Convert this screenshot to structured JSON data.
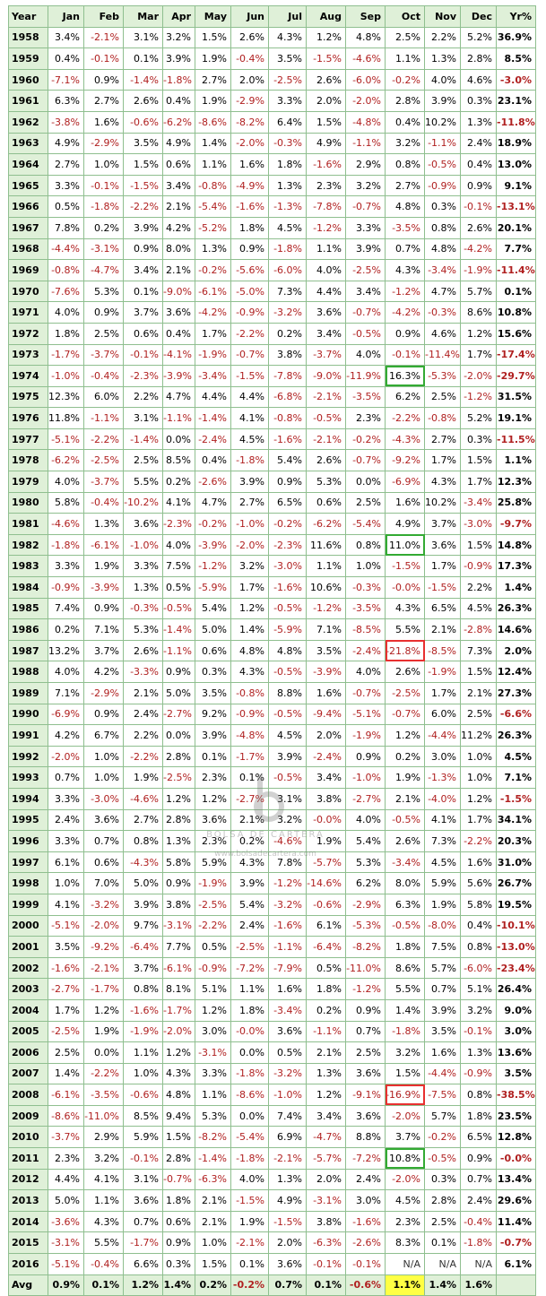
{
  "headers": [
    "Year",
    "Jan",
    "Feb",
    "Mar",
    "Apr",
    "May",
    "Jun",
    "Jul",
    "Aug",
    "Sep",
    "Oct",
    "Nov",
    "Dec",
    "Yr%"
  ],
  "rows": [
    [
      "1958",
      "3.4%",
      "-2.1%",
      "3.1%",
      "3.2%",
      "1.5%",
      "2.6%",
      "4.3%",
      "1.2%",
      "4.8%",
      "2.5%",
      "2.2%",
      "5.2%",
      "36.9%"
    ],
    [
      "1959",
      "0.4%",
      "-0.1%",
      "0.1%",
      "3.9%",
      "1.9%",
      "-0.4%",
      "3.5%",
      "-1.5%",
      "-4.6%",
      "1.1%",
      "1.3%",
      "2.8%",
      "8.5%"
    ],
    [
      "1960",
      "-7.1%",
      "0.9%",
      "-1.4%",
      "-1.8%",
      "2.7%",
      "2.0%",
      "-2.5%",
      "2.6%",
      "-6.0%",
      "-0.2%",
      "4.0%",
      "4.6%",
      "-3.0%"
    ],
    [
      "1961",
      "6.3%",
      "2.7%",
      "2.6%",
      "0.4%",
      "1.9%",
      "-2.9%",
      "3.3%",
      "2.0%",
      "-2.0%",
      "2.8%",
      "3.9%",
      "0.3%",
      "23.1%"
    ],
    [
      "1962",
      "-3.8%",
      "1.6%",
      "-0.6%",
      "-6.2%",
      "-8.6%",
      "-8.2%",
      "6.4%",
      "1.5%",
      "-4.8%",
      "0.4%",
      "10.2%",
      "1.3%",
      "-11.8%"
    ],
    [
      "1963",
      "4.9%",
      "-2.9%",
      "3.5%",
      "4.9%",
      "1.4%",
      "-2.0%",
      "-0.3%",
      "4.9%",
      "-1.1%",
      "3.2%",
      "-1.1%",
      "2.4%",
      "18.9%"
    ],
    [
      "1964",
      "2.7%",
      "1.0%",
      "1.5%",
      "0.6%",
      "1.1%",
      "1.6%",
      "1.8%",
      "-1.6%",
      "2.9%",
      "0.8%",
      "-0.5%",
      "0.4%",
      "13.0%"
    ],
    [
      "1965",
      "3.3%",
      "-0.1%",
      "-1.5%",
      "3.4%",
      "-0.8%",
      "-4.9%",
      "1.3%",
      "2.3%",
      "3.2%",
      "2.7%",
      "-0.9%",
      "0.9%",
      "9.1%"
    ],
    [
      "1966",
      "0.5%",
      "-1.8%",
      "-2.2%",
      "2.1%",
      "-5.4%",
      "-1.6%",
      "-1.3%",
      "-7.8%",
      "-0.7%",
      "4.8%",
      "0.3%",
      "-0.1%",
      "-13.1%"
    ],
    [
      "1967",
      "7.8%",
      "0.2%",
      "3.9%",
      "4.2%",
      "-5.2%",
      "1.8%",
      "4.5%",
      "-1.2%",
      "3.3%",
      "-3.5%",
      "0.8%",
      "2.6%",
      "20.1%"
    ],
    [
      "1968",
      "-4.4%",
      "-3.1%",
      "0.9%",
      "8.0%",
      "1.3%",
      "0.9%",
      "-1.8%",
      "1.1%",
      "3.9%",
      "0.7%",
      "4.8%",
      "-4.2%",
      "7.7%"
    ],
    [
      "1969",
      "-0.8%",
      "-4.7%",
      "3.4%",
      "2.1%",
      "-0.2%",
      "-5.6%",
      "-6.0%",
      "4.0%",
      "-2.5%",
      "4.3%",
      "-3.4%",
      "-1.9%",
      "-11.4%"
    ],
    [
      "1970",
      "-7.6%",
      "5.3%",
      "0.1%",
      "-9.0%",
      "-6.1%",
      "-5.0%",
      "7.3%",
      "4.4%",
      "3.4%",
      "-1.2%",
      "4.7%",
      "5.7%",
      "0.1%"
    ],
    [
      "1971",
      "4.0%",
      "0.9%",
      "3.7%",
      "3.6%",
      "-4.2%",
      "-0.9%",
      "-3.2%",
      "3.6%",
      "-0.7%",
      "-4.2%",
      "-0.3%",
      "8.6%",
      "10.8%"
    ],
    [
      "1972",
      "1.8%",
      "2.5%",
      "0.6%",
      "0.4%",
      "1.7%",
      "-2.2%",
      "0.2%",
      "3.4%",
      "-0.5%",
      "0.9%",
      "4.6%",
      "1.2%",
      "15.6%"
    ],
    [
      "1973",
      "-1.7%",
      "-3.7%",
      "-0.1%",
      "-4.1%",
      "-1.9%",
      "-0.7%",
      "3.8%",
      "-3.7%",
      "4.0%",
      "-0.1%",
      "-11.4%",
      "1.7%",
      "-17.4%"
    ],
    [
      "1974",
      "-1.0%",
      "-0.4%",
      "-2.3%",
      "-3.9%",
      "-3.4%",
      "-1.5%",
      "-7.8%",
      "-9.0%",
      "-11.9%",
      "16.3%",
      "-5.3%",
      "-2.0%",
      "-29.7%"
    ],
    [
      "1975",
      "12.3%",
      "6.0%",
      "2.2%",
      "4.7%",
      "4.4%",
      "4.4%",
      "-6.8%",
      "-2.1%",
      "-3.5%",
      "6.2%",
      "2.5%",
      "-1.2%",
      "31.5%"
    ],
    [
      "1976",
      "11.8%",
      "-1.1%",
      "3.1%",
      "-1.1%",
      "-1.4%",
      "4.1%",
      "-0.8%",
      "-0.5%",
      "2.3%",
      "-2.2%",
      "-0.8%",
      "5.2%",
      "19.1%"
    ],
    [
      "1977",
      "-5.1%",
      "-2.2%",
      "-1.4%",
      "0.0%",
      "-2.4%",
      "4.5%",
      "-1.6%",
      "-2.1%",
      "-0.2%",
      "-4.3%",
      "2.7%",
      "0.3%",
      "-11.5%"
    ],
    [
      "1978",
      "-6.2%",
      "-2.5%",
      "2.5%",
      "8.5%",
      "0.4%",
      "-1.8%",
      "5.4%",
      "2.6%",
      "-0.7%",
      "-9.2%",
      "1.7%",
      "1.5%",
      "1.1%"
    ],
    [
      "1979",
      "4.0%",
      "-3.7%",
      "5.5%",
      "0.2%",
      "-2.6%",
      "3.9%",
      "0.9%",
      "5.3%",
      "0.0%",
      "-6.9%",
      "4.3%",
      "1.7%",
      "12.3%"
    ],
    [
      "1980",
      "5.8%",
      "-0.4%",
      "-10.2%",
      "4.1%",
      "4.7%",
      "2.7%",
      "6.5%",
      "0.6%",
      "2.5%",
      "1.6%",
      "10.2%",
      "-3.4%",
      "25.8%"
    ],
    [
      "1981",
      "-4.6%",
      "1.3%",
      "3.6%",
      "-2.3%",
      "-0.2%",
      "-1.0%",
      "-0.2%",
      "-6.2%",
      "-5.4%",
      "4.9%",
      "3.7%",
      "-3.0%",
      "-9.7%"
    ],
    [
      "1982",
      "-1.8%",
      "-6.1%",
      "-1.0%",
      "4.0%",
      "-3.9%",
      "-2.0%",
      "-2.3%",
      "11.6%",
      "0.8%",
      "11.0%",
      "3.6%",
      "1.5%",
      "14.8%"
    ],
    [
      "1983",
      "3.3%",
      "1.9%",
      "3.3%",
      "7.5%",
      "-1.2%",
      "3.2%",
      "-3.0%",
      "1.1%",
      "1.0%",
      "-1.5%",
      "1.7%",
      "-0.9%",
      "17.3%"
    ],
    [
      "1984",
      "-0.9%",
      "-3.9%",
      "1.3%",
      "0.5%",
      "-5.9%",
      "1.7%",
      "-1.6%",
      "10.6%",
      "-0.3%",
      "-0.0%",
      "-1.5%",
      "2.2%",
      "1.4%"
    ],
    [
      "1985",
      "7.4%",
      "0.9%",
      "-0.3%",
      "-0.5%",
      "5.4%",
      "1.2%",
      "-0.5%",
      "-1.2%",
      "-3.5%",
      "4.3%",
      "6.5%",
      "4.5%",
      "26.3%"
    ],
    [
      "1986",
      "0.2%",
      "7.1%",
      "5.3%",
      "-1.4%",
      "5.0%",
      "1.4%",
      "-5.9%",
      "7.1%",
      "-8.5%",
      "5.5%",
      "2.1%",
      "-2.8%",
      "14.6%"
    ],
    [
      "1987",
      "13.2%",
      "3.7%",
      "2.6%",
      "-1.1%",
      "0.6%",
      "4.8%",
      "4.8%",
      "3.5%",
      "-2.4%",
      "-21.8%",
      "-8.5%",
      "7.3%",
      "2.0%"
    ],
    [
      "1988",
      "4.0%",
      "4.2%",
      "-3.3%",
      "0.9%",
      "0.3%",
      "4.3%",
      "-0.5%",
      "-3.9%",
      "4.0%",
      "2.6%",
      "-1.9%",
      "1.5%",
      "12.4%"
    ],
    [
      "1989",
      "7.1%",
      "-2.9%",
      "2.1%",
      "5.0%",
      "3.5%",
      "-0.8%",
      "8.8%",
      "1.6%",
      "-0.7%",
      "-2.5%",
      "1.7%",
      "2.1%",
      "27.3%"
    ],
    [
      "1990",
      "-6.9%",
      "0.9%",
      "2.4%",
      "-2.7%",
      "9.2%",
      "-0.9%",
      "-0.5%",
      "-9.4%",
      "-5.1%",
      "-0.7%",
      "6.0%",
      "2.5%",
      "-6.6%"
    ],
    [
      "1991",
      "4.2%",
      "6.7%",
      "2.2%",
      "0.0%",
      "3.9%",
      "-4.8%",
      "4.5%",
      "2.0%",
      "-1.9%",
      "1.2%",
      "-4.4%",
      "11.2%",
      "26.3%"
    ],
    [
      "1992",
      "-2.0%",
      "1.0%",
      "-2.2%",
      "2.8%",
      "0.1%",
      "-1.7%",
      "3.9%",
      "-2.4%",
      "0.9%",
      "0.2%",
      "3.0%",
      "1.0%",
      "4.5%"
    ],
    [
      "1993",
      "0.7%",
      "1.0%",
      "1.9%",
      "-2.5%",
      "2.3%",
      "0.1%",
      "-0.5%",
      "3.4%",
      "-1.0%",
      "1.9%",
      "-1.3%",
      "1.0%",
      "7.1%"
    ],
    [
      "1994",
      "3.3%",
      "-3.0%",
      "-4.6%",
      "1.2%",
      "1.2%",
      "-2.7%",
      "3.1%",
      "3.8%",
      "-2.7%",
      "2.1%",
      "-4.0%",
      "1.2%",
      "-1.5%"
    ],
    [
      "1995",
      "2.4%",
      "3.6%",
      "2.7%",
      "2.8%",
      "3.6%",
      "2.1%",
      "3.2%",
      "-0.0%",
      "4.0%",
      "-0.5%",
      "4.1%",
      "1.7%",
      "34.1%"
    ],
    [
      "1996",
      "3.3%",
      "0.7%",
      "0.8%",
      "1.3%",
      "2.3%",
      "0.2%",
      "-4.6%",
      "1.9%",
      "5.4%",
      "2.6%",
      "7.3%",
      "-2.2%",
      "20.3%"
    ],
    [
      "1997",
      "6.1%",
      "0.6%",
      "-4.3%",
      "5.8%",
      "5.9%",
      "4.3%",
      "7.8%",
      "-5.7%",
      "5.3%",
      "-3.4%",
      "4.5%",
      "1.6%",
      "31.0%"
    ],
    [
      "1998",
      "1.0%",
      "7.0%",
      "5.0%",
      "0.9%",
      "-1.9%",
      "3.9%",
      "-1.2%",
      "-14.6%",
      "6.2%",
      "8.0%",
      "5.9%",
      "5.6%",
      "26.7%"
    ],
    [
      "1999",
      "4.1%",
      "-3.2%",
      "3.9%",
      "3.8%",
      "-2.5%",
      "5.4%",
      "-3.2%",
      "-0.6%",
      "-2.9%",
      "6.3%",
      "1.9%",
      "5.8%",
      "19.5%"
    ],
    [
      "2000",
      "-5.1%",
      "-2.0%",
      "9.7%",
      "-3.1%",
      "-2.2%",
      "2.4%",
      "-1.6%",
      "6.1%",
      "-5.3%",
      "-0.5%",
      "-8.0%",
      "0.4%",
      "-10.1%"
    ],
    [
      "2001",
      "3.5%",
      "-9.2%",
      "-6.4%",
      "7.7%",
      "0.5%",
      "-2.5%",
      "-1.1%",
      "-6.4%",
      "-8.2%",
      "1.8%",
      "7.5%",
      "0.8%",
      "-13.0%"
    ],
    [
      "2002",
      "-1.6%",
      "-2.1%",
      "3.7%",
      "-6.1%",
      "-0.9%",
      "-7.2%",
      "-7.9%",
      "0.5%",
      "-11.0%",
      "8.6%",
      "5.7%",
      "-6.0%",
      "-23.4%"
    ],
    [
      "2003",
      "-2.7%",
      "-1.7%",
      "0.8%",
      "8.1%",
      "5.1%",
      "1.1%",
      "1.6%",
      "1.8%",
      "-1.2%",
      "5.5%",
      "0.7%",
      "5.1%",
      "26.4%"
    ],
    [
      "2004",
      "1.7%",
      "1.2%",
      "-1.6%",
      "-1.7%",
      "1.2%",
      "1.8%",
      "-3.4%",
      "0.2%",
      "0.9%",
      "1.4%",
      "3.9%",
      "3.2%",
      "9.0%"
    ],
    [
      "2005",
      "-2.5%",
      "1.9%",
      "-1.9%",
      "-2.0%",
      "3.0%",
      "-0.0%",
      "3.6%",
      "-1.1%",
      "0.7%",
      "-1.8%",
      "3.5%",
      "-0.1%",
      "3.0%"
    ],
    [
      "2006",
      "2.5%",
      "0.0%",
      "1.1%",
      "1.2%",
      "-3.1%",
      "0.0%",
      "0.5%",
      "2.1%",
      "2.5%",
      "3.2%",
      "1.6%",
      "1.3%",
      "13.6%"
    ],
    [
      "2007",
      "1.4%",
      "-2.2%",
      "1.0%",
      "4.3%",
      "3.3%",
      "-1.8%",
      "-3.2%",
      "1.3%",
      "3.6%",
      "1.5%",
      "-4.4%",
      "-0.9%",
      "3.5%"
    ],
    [
      "2008",
      "-6.1%",
      "-3.5%",
      "-0.6%",
      "4.8%",
      "1.1%",
      "-8.6%",
      "-1.0%",
      "1.2%",
      "-9.1%",
      "-16.9%",
      "-7.5%",
      "0.8%",
      "-38.5%"
    ],
    [
      "2009",
      "-8.6%",
      "-11.0%",
      "8.5%",
      "9.4%",
      "5.3%",
      "0.0%",
      "7.4%",
      "3.4%",
      "3.6%",
      "-2.0%",
      "5.7%",
      "1.8%",
      "23.5%"
    ],
    [
      "2010",
      "-3.7%",
      "2.9%",
      "5.9%",
      "1.5%",
      "-8.2%",
      "-5.4%",
      "6.9%",
      "-4.7%",
      "8.8%",
      "3.7%",
      "-0.2%",
      "6.5%",
      "12.8%"
    ],
    [
      "2011",
      "2.3%",
      "3.2%",
      "-0.1%",
      "2.8%",
      "-1.4%",
      "-1.8%",
      "-2.1%",
      "-5.7%",
      "-7.2%",
      "10.8%",
      "-0.5%",
      "0.9%",
      "-0.0%"
    ],
    [
      "2012",
      "4.4%",
      "4.1%",
      "3.1%",
      "-0.7%",
      "-6.3%",
      "4.0%",
      "1.3%",
      "2.0%",
      "2.4%",
      "-2.0%",
      "0.3%",
      "0.7%",
      "13.4%"
    ],
    [
      "2013",
      "5.0%",
      "1.1%",
      "3.6%",
      "1.8%",
      "2.1%",
      "-1.5%",
      "4.9%",
      "-3.1%",
      "3.0%",
      "4.5%",
      "2.8%",
      "2.4%",
      "29.6%"
    ],
    [
      "2014",
      "-3.6%",
      "4.3%",
      "0.7%",
      "0.6%",
      "2.1%",
      "1.9%",
      "-1.5%",
      "3.8%",
      "-1.6%",
      "2.3%",
      "2.5%",
      "-0.4%",
      "11.4%"
    ],
    [
      "2015",
      "-3.1%",
      "5.5%",
      "-1.7%",
      "0.9%",
      "1.0%",
      "-2.1%",
      "2.0%",
      "-6.3%",
      "-2.6%",
      "8.3%",
      "0.1%",
      "-1.8%",
      "-0.7%"
    ],
    [
      "2016",
      "-5.1%",
      "-0.4%",
      "6.6%",
      "0.3%",
      "1.5%",
      "0.1%",
      "3.6%",
      "-0.1%",
      "-0.1%",
      "N/A",
      "N/A",
      "N/A",
      "6.1%"
    ]
  ],
  "averages": {
    "label": "Avg",
    "values": [
      "0.9%",
      "0.1%",
      "1.2%",
      "1.4%",
      "0.2%",
      "-0.2%",
      "0.7%",
      "0.1%",
      "-0.6%",
      "1.1%",
      "1.4%",
      "1.6%",
      ""
    ]
  },
  "highlights": {
    "best_month": [
      [
        "1974",
        "Oct"
      ],
      [
        "1982",
        "Oct"
      ],
      [
        "2011",
        "Oct"
      ]
    ],
    "worst_month": [
      [
        "1987",
        "Oct"
      ],
      [
        "2008",
        "Oct"
      ]
    ],
    "avg_highlight_month": "Oct",
    "colors": {
      "negative": "#b02020",
      "positive": "#000000",
      "header_bg": "#dff0d8",
      "best_border": "#33aa33",
      "worst_border": "#e83030",
      "avg_highlight_bg": "#ffff44"
    }
  },
  "watermark": {
    "name": "BOLSA DE CARTERA",
    "url": "www.bolsadecartera.com"
  }
}
